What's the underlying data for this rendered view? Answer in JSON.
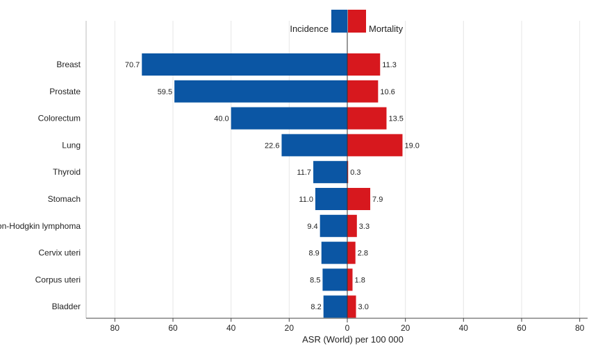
{
  "chart_data": {
    "type": "bar",
    "orientation": "horizontal",
    "layout": "back-to-back",
    "categories": [
      "Breast",
      "Prostate",
      "Colorectum",
      "Lung",
      "Thyroid",
      "Stomach",
      "Non-Hodgkin lymphoma",
      "Cervix uteri",
      "Corpus uteri",
      "Bladder"
    ],
    "series": [
      {
        "name": "Incidence",
        "side": "left",
        "color": "#0b56a4",
        "values": [
          70.7,
          59.5,
          40.0,
          22.6,
          11.7,
          11.0,
          9.4,
          8.9,
          8.5,
          8.2
        ],
        "labels": [
          "70.7",
          "59.5",
          "40.0",
          "22.6",
          "11.7",
          "11.0",
          "9.4",
          "8.9",
          "8.5",
          "8.2"
        ]
      },
      {
        "name": "Mortality",
        "side": "right",
        "color": "#d7181e",
        "values": [
          11.3,
          10.6,
          13.5,
          19.0,
          0.3,
          7.9,
          3.3,
          2.8,
          1.8,
          3.0
        ],
        "labels": [
          "11.3",
          "10.6",
          "13.5",
          "19.0",
          "0.3",
          "7.9",
          "3.3",
          "2.8",
          "1.8",
          "3.0"
        ]
      }
    ],
    "xlabel": "ASR (World) per 100 000",
    "xlim": [
      -80,
      80
    ],
    "xticks": [
      -80,
      -60,
      -40,
      -20,
      0,
      20,
      40,
      60,
      80
    ],
    "xtick_labels": [
      "80",
      "60",
      "40",
      "20",
      "0",
      "20",
      "40",
      "60",
      "80"
    ],
    "grid": "vertical",
    "legend": "top-center"
  }
}
